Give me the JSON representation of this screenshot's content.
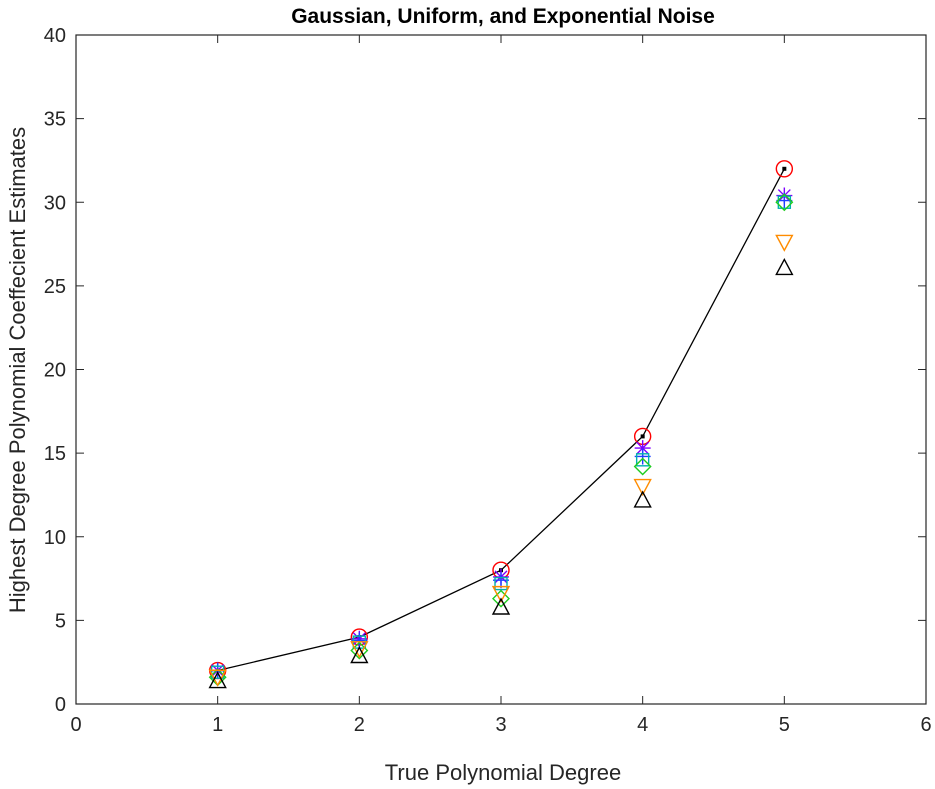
{
  "chart_data": {
    "type": "scatter",
    "title": "Gaussian, Uniform, and Exponential Noise",
    "xlabel": "True Polynomial Degree",
    "ylabel": "Highest Degree Polynomial Coeffecient Estimates",
    "xlim": [
      0,
      6
    ],
    "ylim": [
      0,
      40
    ],
    "x_ticks": [
      "0",
      "1",
      "2",
      "3",
      "4",
      "5",
      "6"
    ],
    "y_ticks": [
      "0",
      "5",
      "10",
      "15",
      "20",
      "25",
      "30",
      "35",
      "40"
    ],
    "grid": false,
    "legend": "none",
    "x": [
      1,
      2,
      3,
      4,
      5
    ],
    "series": [
      {
        "marker": "line-dot",
        "color": "#000000",
        "values": [
          2,
          4,
          8,
          16,
          32
        ]
      },
      {
        "marker": "circle",
        "color": "#ff0000",
        "values": [
          2,
          4,
          8,
          16,
          32
        ]
      },
      {
        "marker": "star",
        "color": "#7f00ff",
        "values": [
          2.0,
          3.9,
          7.6,
          15.3,
          30.4
        ]
      },
      {
        "marker": "plus",
        "color": "#1f3fff",
        "values": [
          2.0,
          3.8,
          7.4,
          14.8,
          30.1
        ]
      },
      {
        "marker": "square",
        "color": "#00b0b0",
        "values": [
          1.9,
          3.7,
          7.2,
          14.6,
          30.0
        ]
      },
      {
        "marker": "diamond",
        "color": "#1fcc1f",
        "values": [
          1.6,
          3.2,
          6.3,
          14.2,
          30.0
        ]
      },
      {
        "marker": "triangle-down",
        "color": "#ff8c00",
        "values": [
          1.6,
          3.3,
          6.6,
          13.0,
          27.6
        ]
      },
      {
        "marker": "triangle-up",
        "color": "#000000",
        "values": [
          1.4,
          2.9,
          5.8,
          12.2,
          26.1
        ]
      }
    ]
  }
}
